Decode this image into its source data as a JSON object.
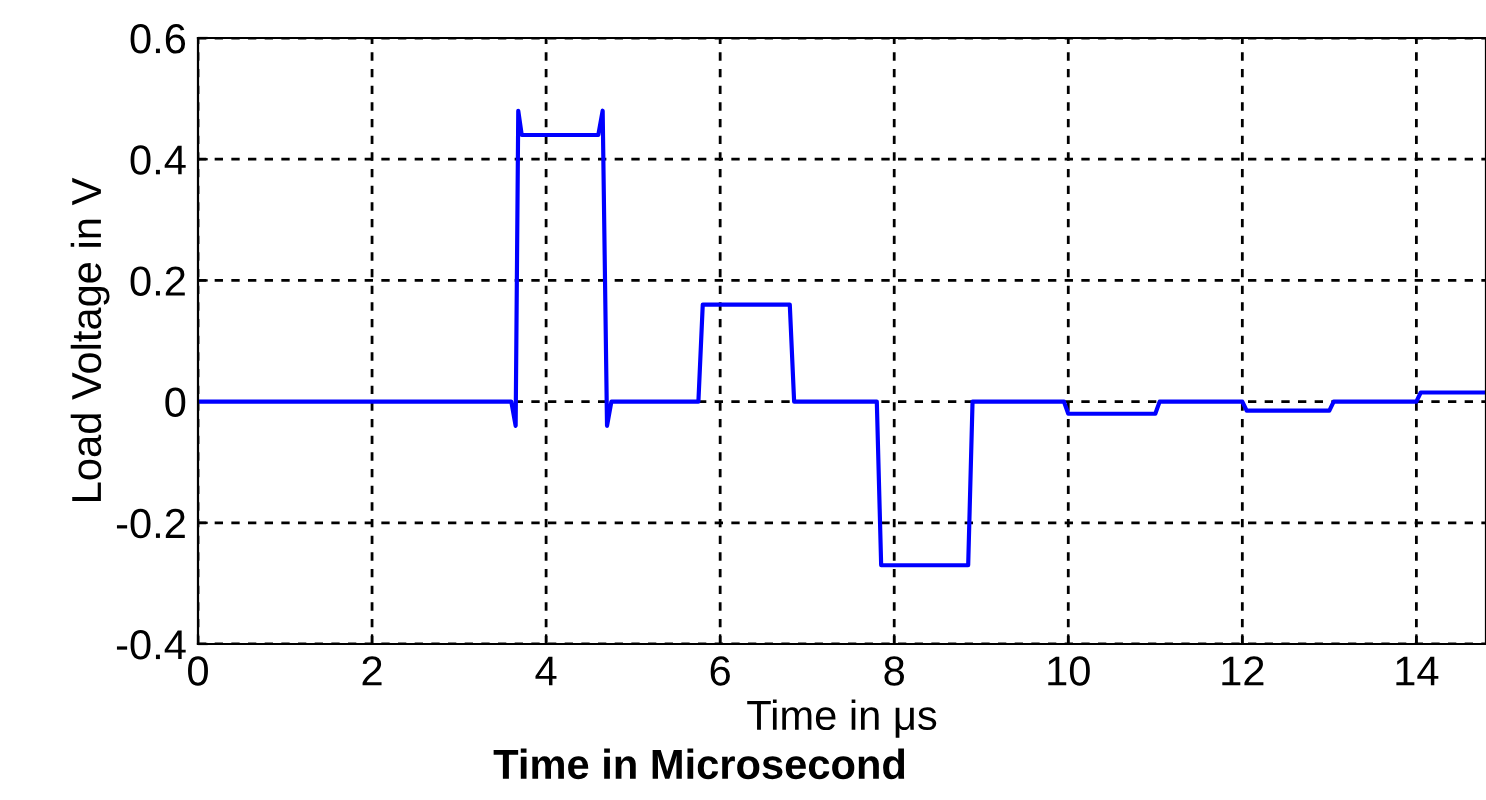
{
  "chart_data": {
    "type": "line",
    "xlabel": "Time in μs",
    "ylabel": "Load Voltage in V",
    "annotations": [
      "Time in Microsecond"
    ],
    "x": [
      0,
      3.6,
      3.65,
      3.68,
      3.72,
      4.6,
      4.65,
      4.7,
      4.75,
      5.75,
      5.8,
      6.8,
      6.85,
      7.8,
      7.85,
      8.85,
      8.9,
      9.95,
      10.0,
      11.0,
      11.05,
      12.0,
      12.05,
      13.0,
      13.05,
      14.0,
      14.05,
      14.8
    ],
    "series": [
      {
        "color": "#0000ff",
        "values": [
          0,
          0,
          -0.04,
          0.48,
          0.44,
          0.44,
          0.48,
          -0.04,
          0,
          0,
          0.16,
          0.16,
          0,
          0,
          -0.27,
          -0.27,
          0,
          0,
          -0.02,
          -0.02,
          0,
          0,
          -0.015,
          -0.015,
          0,
          0,
          0.015,
          0.015
        ]
      }
    ],
    "xlim": [
      0,
      14.8
    ],
    "xticks": [
      0,
      2,
      4,
      6,
      8,
      10,
      12,
      14
    ],
    "ylim": [
      -0.4,
      0.6
    ],
    "yticks": [
      -0.4,
      -0.2,
      0,
      0.2,
      0.4,
      0.6
    ],
    "grid": true,
    "line_style": "solid",
    "marker": "none"
  }
}
